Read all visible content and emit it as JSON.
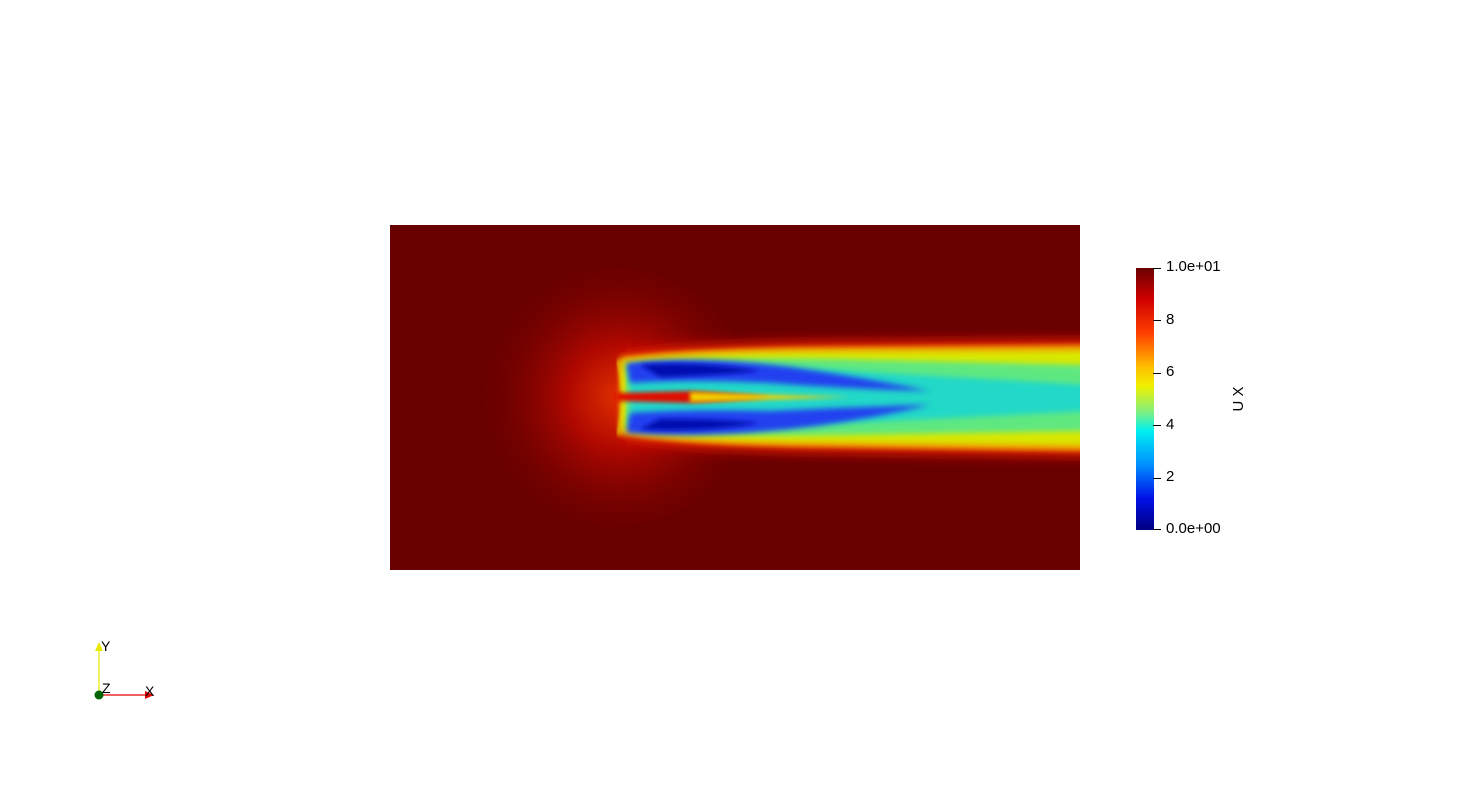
{
  "colorbar": {
    "title": "U X",
    "max_label": "1.0e+01",
    "min_label": "0.0e+00",
    "ticks": [
      "8",
      "6",
      "4",
      "2"
    ],
    "colors": {
      "darkred": "#6a0000",
      "red": "#e81000",
      "yellow": "#f2f000",
      "cyan": "#00f0f0",
      "blue": "#0000e8",
      "navy": "#000080"
    }
  },
  "field": {
    "background_color": "#680000"
  },
  "axes": {
    "x_label": "X",
    "y_label": "Y",
    "z_label": "Z",
    "x_color": "#e00000",
    "y_color": "#e8e800",
    "z_color": "#006400"
  }
}
